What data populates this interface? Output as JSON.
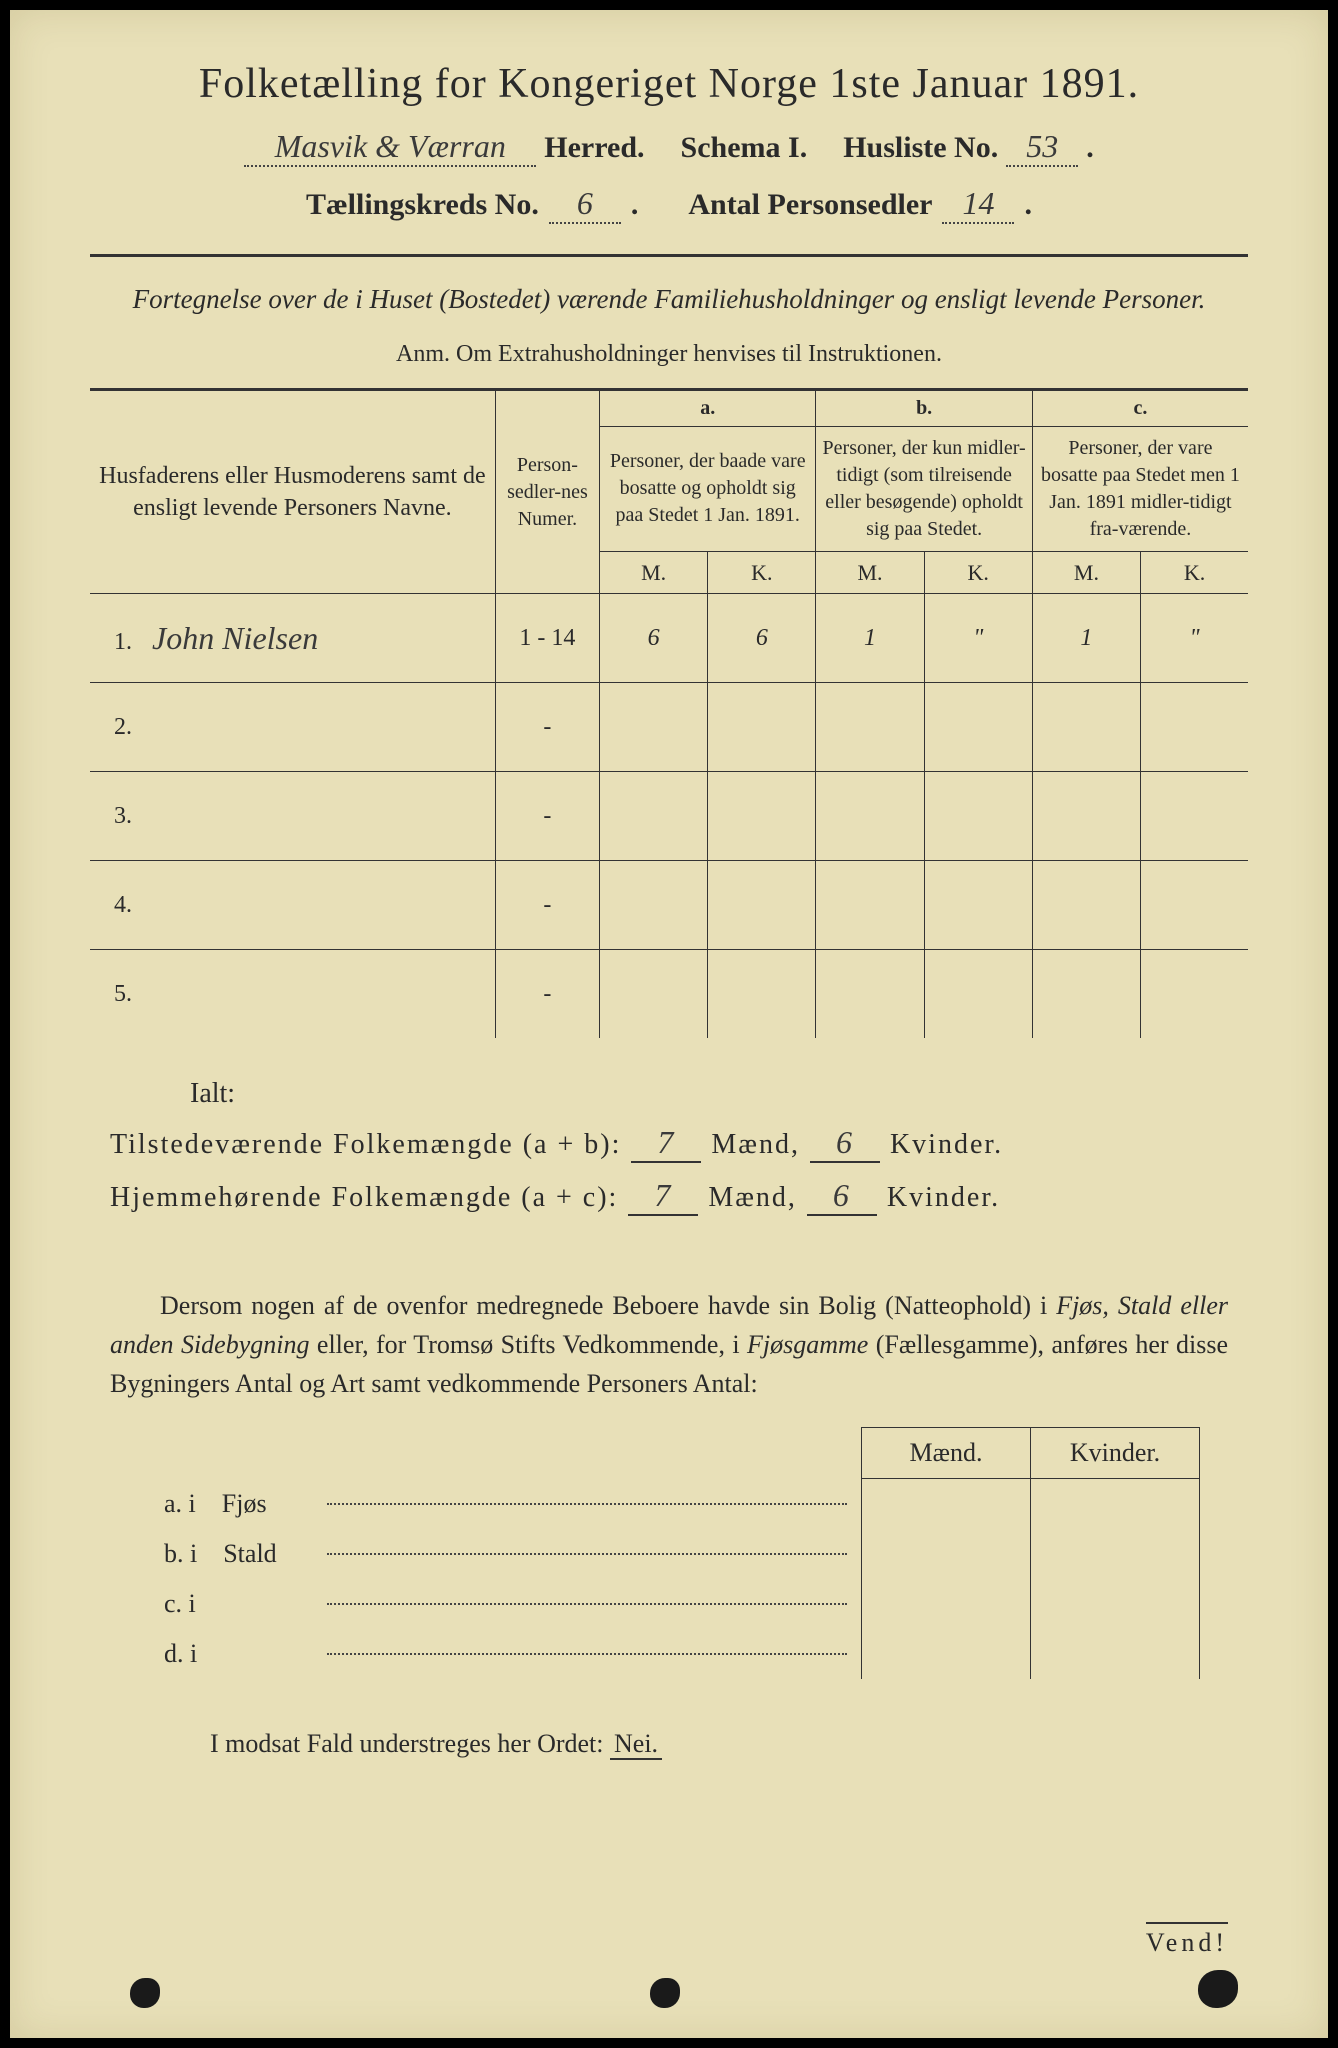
{
  "title": "Folketælling for Kongeriget Norge 1ste Januar 1891.",
  "line2": {
    "herred_hw": "Masvik & Værran",
    "herred": "Herred.",
    "schema": "Schema I.",
    "husliste_lbl": "Husliste No.",
    "husliste_hw": "53"
  },
  "line3": {
    "kreds_lbl": "Tællingskreds No.",
    "kreds_hw": "6",
    "antal_lbl": "Antal Personsedler",
    "antal_hw": "14"
  },
  "subhead": "Fortegnelse over de i Huset (Bostedet) værende Familiehusholdninger og ensligt levende Personer.",
  "anm": "Anm.  Om Extrahusholdninger henvises til Instruktionen.",
  "table": {
    "col_name": "Husfaderens eller Husmoderens samt de ensligt levende Personers Navne.",
    "col_num": "Person-sedler-nes Numer.",
    "col_a_hdr": "a.",
    "col_a": "Personer, der baade vare bosatte og opholdt sig paa Stedet 1 Jan. 1891.",
    "col_b_hdr": "b.",
    "col_b": "Personer, der kun midler-tidigt (som tilreisende eller besøgende) opholdt sig paa Stedet.",
    "col_c_hdr": "c.",
    "col_c": "Personer, der vare bosatte paa Stedet men 1 Jan. 1891 midler-tidigt fra-værende.",
    "M": "M.",
    "K": "K.",
    "rows": [
      {
        "n": "1.",
        "name": "John Nielsen",
        "num": "1 - 14",
        "aM": "6",
        "aK": "6",
        "bM": "1",
        "bK": "\"",
        "cM": "1",
        "cK": "\""
      },
      {
        "n": "2.",
        "name": "",
        "num": "-",
        "aM": "",
        "aK": "",
        "bM": "",
        "bK": "",
        "cM": "",
        "cK": ""
      },
      {
        "n": "3.",
        "name": "",
        "num": "-",
        "aM": "",
        "aK": "",
        "bM": "",
        "bK": "",
        "cM": "",
        "cK": ""
      },
      {
        "n": "4.",
        "name": "",
        "num": "-",
        "aM": "",
        "aK": "",
        "bM": "",
        "bK": "",
        "cM": "",
        "cK": ""
      },
      {
        "n": "5.",
        "name": "",
        "num": "-",
        "aM": "",
        "aK": "",
        "bM": "",
        "bK": "",
        "cM": "",
        "cK": ""
      }
    ]
  },
  "ialt": {
    "lbl": "Ialt:",
    "row1_lbl": "Tilstedeværende Folkemængde (a + b):",
    "row1_m": "7",
    "row1_k": "6",
    "row2_lbl": "Hjemmehørende Folkemængde (a + c):",
    "row2_m": "7",
    "row2_k": "6",
    "maend": "Mænd,",
    "kvinder": "Kvinder."
  },
  "para": "Dersom nogen af de ovenfor medregnede Beboere havde sin Bolig (Natteophold) i Fjøs, Stald eller anden Sidebygning eller, for Tromsø Stifts Vedkommende, i Fjøsgamme (Fællesgamme), anføres her disse Bygningers Antal og Art samt vedkommende Personers Antal:",
  "building": {
    "maend": "Mænd.",
    "kvinder": "Kvinder.",
    "rows": [
      {
        "lbl": "a. i",
        "txt": "Fjøs"
      },
      {
        "lbl": "b. i",
        "txt": "Stald"
      },
      {
        "lbl": "c. i",
        "txt": ""
      },
      {
        "lbl": "d. i",
        "txt": ""
      }
    ]
  },
  "nei": {
    "pre": "I modsat Fald understreges her Ordet:",
    "word": "Nei."
  },
  "vend": "Vend!"
}
